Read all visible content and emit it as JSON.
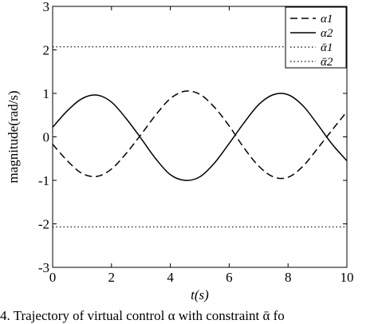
{
  "chart_data": {
    "type": "line",
    "xlabel": "t(s)",
    "ylabel": "magnitude(rad/s)",
    "xlim": [
      0,
      10
    ],
    "ylim": [
      -3,
      3
    ],
    "xticks": [
      "0",
      "2",
      "4",
      "6",
      "8",
      "10"
    ],
    "yticks": [
      "-3",
      "-2",
      "-1",
      "0",
      "1",
      "2",
      "3"
    ],
    "grid": false,
    "legend_position": "top-right",
    "series": [
      {
        "name": "α1",
        "style": "dashed",
        "x": [
          0,
          0.5,
          1,
          1.5,
          2,
          2.5,
          3,
          3.5,
          4,
          4.5,
          5,
          5.5,
          6,
          6.5,
          7,
          7.5,
          8,
          8.5,
          9,
          9.5,
          10
        ],
        "y": [
          -0.17,
          -0.55,
          -0.84,
          -0.91,
          -0.74,
          -0.38,
          0.05,
          0.5,
          0.88,
          1.05,
          0.98,
          0.68,
          0.25,
          -0.25,
          -0.67,
          -0.92,
          -0.93,
          -0.68,
          -0.27,
          0.16,
          0.58
        ]
      },
      {
        "name": "α2",
        "style": "solid",
        "x": [
          0,
          0.5,
          1,
          1.5,
          2,
          2.5,
          3,
          3.5,
          4,
          4.5,
          5,
          5.5,
          6,
          6.5,
          7,
          7.5,
          8,
          8.5,
          9,
          9.5,
          10
        ],
        "y": [
          0.22,
          0.6,
          0.88,
          0.96,
          0.8,
          0.42,
          -0.03,
          -0.5,
          -0.87,
          -1.0,
          -0.92,
          -0.6,
          -0.15,
          0.32,
          0.74,
          0.97,
          0.97,
          0.72,
          0.29,
          -0.17,
          -0.55
        ]
      },
      {
        "name": "ᾱ1",
        "style": "dotted",
        "x": [
          0,
          10
        ],
        "y": [
          2.07,
          2.07
        ]
      },
      {
        "name": "ᾱ2",
        "style": "dotted",
        "x": [
          0,
          10
        ],
        "y": [
          -2.07,
          -2.07
        ]
      }
    ]
  },
  "caption": "4. Trajectory of virtual control α with constraint ᾱ fo"
}
